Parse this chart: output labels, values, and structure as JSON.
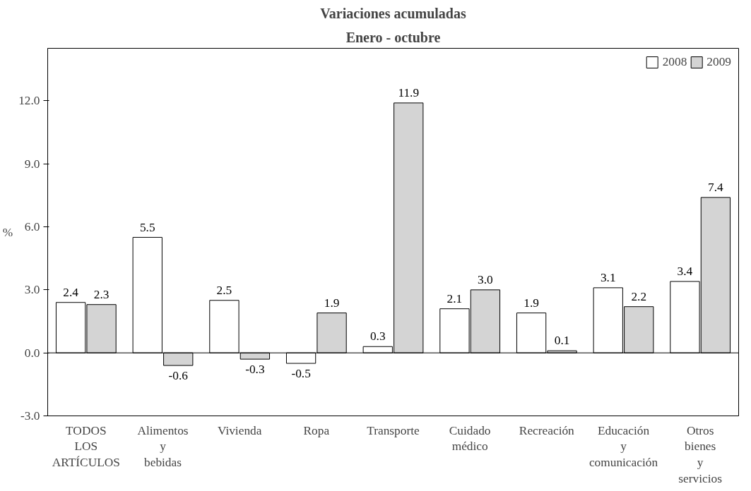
{
  "chart_data": {
    "type": "bar",
    "title": "Variaciones acumuladas",
    "subtitle": "Enero - octubre",
    "ylabel": "%",
    "categories": [
      "TODOS LOS ARTÍCULOS",
      "Alimentos y bebidas",
      "Vivienda",
      "Ropa",
      "Transporte",
      "Cuidado médico",
      "Recreación",
      "Educación y comunicación",
      "Otros bienes y servicios"
    ],
    "series": [
      {
        "name": "2008",
        "color": "#ffffff",
        "values": [
          2.4,
          5.5,
          2.5,
          -0.5,
          0.3,
          2.1,
          1.9,
          3.1,
          3.4
        ],
        "value_labels": [
          "2.4",
          "5.5",
          "2.5",
          "-0.5",
          "0.3",
          "2.1",
          "1.9",
          "3.1",
          "3.4"
        ]
      },
      {
        "name": "2009",
        "color": "#d4d4d4",
        "values": [
          2.3,
          -0.6,
          -0.3,
          1.9,
          11.9,
          3.0,
          0.1,
          2.2,
          7.4
        ],
        "value_labels": [
          "2.3",
          "-0.6",
          "-0.3",
          "1.9",
          "11.9",
          "3.0",
          "0.1",
          "2.2",
          "7.4"
        ]
      }
    ],
    "ylim": [
      -3,
      14.5
    ],
    "yticks": [
      {
        "value": -3,
        "label": "-3.0"
      },
      {
        "value": 0,
        "label": "0.0"
      },
      {
        "value": 3,
        "label": "3.0"
      },
      {
        "value": 6,
        "label": "6.0"
      },
      {
        "value": 9,
        "label": "9.0"
      },
      {
        "value": 12,
        "label": "12.0"
      }
    ],
    "ref_lines": [
      {
        "axis": "y",
        "value": 0
      }
    ],
    "legend": "top right",
    "grid": false
  }
}
